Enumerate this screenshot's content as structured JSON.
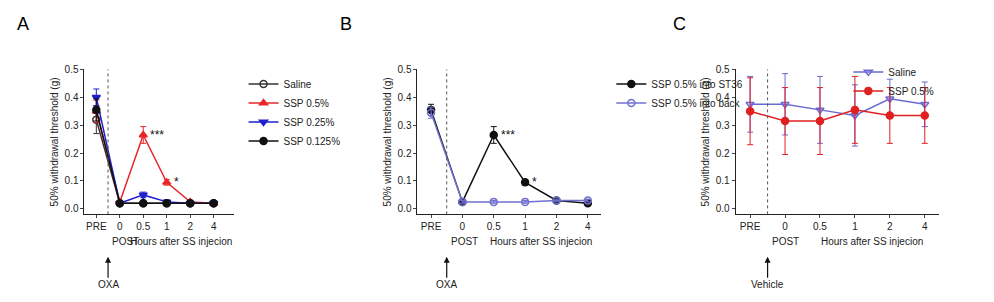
{
  "chart_data": [
    {
      "type": "line",
      "title": "A",
      "y_label": "50% withdrawal threshold (g)",
      "x_label": "Hours after SS injecion",
      "post_label": "POST",
      "injection_label": "OXA",
      "categories": [
        "PRE",
        "0",
        "0.5",
        "1",
        "2",
        "4"
      ],
      "ylim": [
        -0.02,
        0.5
      ],
      "yticks": [
        {
          "value": 0,
          "label": "0.0"
        },
        0.1,
        0.2,
        0.3,
        0.4,
        0.5
      ],
      "legend": "right",
      "series": [
        {
          "name": "Saline",
          "color": "#333333",
          "marker": "circle-open",
          "values": [
            0.32,
            0.02,
            0.02,
            0.02,
            0.02,
            0.02
          ],
          "errors": [
            0.05,
            0.005,
            0.005,
            0.005,
            0.005,
            0.005
          ]
        },
        {
          "name": "SSP 0.5%",
          "color": "#e8262a",
          "marker": "triangle-up",
          "values": [
            0.35,
            0.025,
            0.265,
            0.095,
            0.025,
            0.02
          ],
          "errors": [
            0.04,
            0.005,
            0.03,
            0.01,
            0.005,
            0.005
          ]
        },
        {
          "name": "SSP 0.25%",
          "color": "#1f1fcc",
          "marker": "triangle-down",
          "values": [
            0.4,
            0.02,
            0.05,
            0.025,
            0.02,
            0.02
          ],
          "errors": [
            0.03,
            0.005,
            0.01,
            0.005,
            0.005,
            0.005
          ]
        },
        {
          "name": "SSP 0.125%",
          "color": "#111111",
          "marker": "circle",
          "values": [
            0.355,
            0.02,
            0.02,
            0.02,
            0.02,
            0.02
          ],
          "errors": [
            0.04,
            0.005,
            0.005,
            0.005,
            0.005,
            0.005
          ]
        }
      ],
      "significance": [
        {
          "series": "SSP 0.5%",
          "category": "0.5",
          "text": "***"
        },
        {
          "series": "SSP 0.5%",
          "category": "1",
          "text": "*"
        }
      ]
    },
    {
      "type": "line",
      "title": "B",
      "y_label": "50% withdrawal threshold (g)",
      "x_label": "Hours after SS injecion",
      "post_label": "POST",
      "injection_label": "OXA",
      "categories": [
        "PRE",
        "0",
        "0.5",
        "1",
        "2",
        "4"
      ],
      "ylim": [
        -0.02,
        0.5
      ],
      "yticks": [
        {
          "value": 0,
          "label": "0.0"
        },
        0.1,
        0.2,
        0.3,
        0.4,
        0.5
      ],
      "legend": "right",
      "series": [
        {
          "name": "SSP 0.5% into ST36",
          "color": "#111111",
          "marker": "circle",
          "values": [
            0.355,
            0.025,
            0.265,
            0.095,
            0.03,
            0.02
          ],
          "errors": [
            0.02,
            0.005,
            0.03,
            0.01,
            0.005,
            0.005
          ]
        },
        {
          "name": "SSP 0.5% into back",
          "color": "#7070d0",
          "marker": "circle-open",
          "values": [
            0.345,
            0.025,
            0.025,
            0.025,
            0.03,
            0.03
          ],
          "errors": [
            0.02,
            0.005,
            0.005,
            0.005,
            0.005,
            0.005
          ]
        }
      ],
      "significance": [
        {
          "series": "SSP 0.5% into ST36",
          "category": "0.5",
          "text": "***"
        },
        {
          "series": "SSP 0.5% into ST36",
          "category": "1",
          "text": "*"
        }
      ]
    },
    {
      "type": "line",
      "title": "C",
      "y_label": "50% withdrawal threshold (g)",
      "x_label": "Hours after SS injecion",
      "post_label": "POST",
      "injection_label": "Vehicle",
      "categories": [
        "PRE",
        "0",
        "0.5",
        "1",
        "2",
        "4"
      ],
      "ylim": [
        -0.02,
        0.5
      ],
      "yticks": [
        {
          "value": 0,
          "label": "0.0"
        },
        0.1,
        0.2,
        0.3,
        0.4,
        0.5
      ],
      "legend": "top right",
      "series": [
        {
          "name": "Saline",
          "color": "#6a6ad0",
          "marker": "triangle-down-open",
          "values": [
            0.375,
            0.375,
            0.355,
            0.335,
            0.395,
            0.375
          ],
          "errors": [
            0.1,
            0.11,
            0.12,
            0.11,
            0.07,
            0.08
          ]
        },
        {
          "name": "SSP 0.5%",
          "color": "#e02020",
          "marker": "circle",
          "values": [
            0.35,
            0.315,
            0.315,
            0.355,
            0.335,
            0.335
          ],
          "errors": [
            0.12,
            0.12,
            0.12,
            0.12,
            0.1,
            0.1
          ]
        }
      ],
      "significance": []
    }
  ]
}
